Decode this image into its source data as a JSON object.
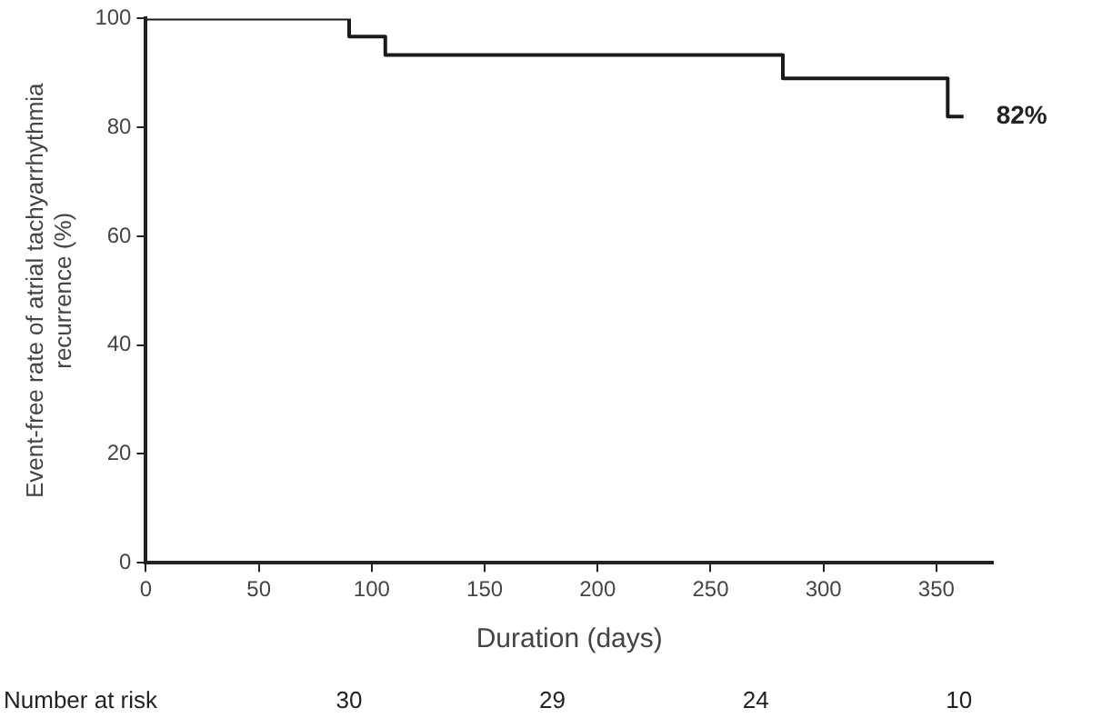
{
  "chart_data": {
    "type": "step",
    "xlabel": "Duration (days)",
    "ylabel": "Event-free rate of atrial tachyarrhythmia recurrence (%)",
    "x": [
      0,
      90,
      106,
      282,
      355,
      362
    ],
    "series": [
      {
        "color": "#1a1a1a",
        "values": [
          100,
          96.7,
          93.3,
          89,
          82,
          82
        ]
      }
    ],
    "xlim": [
      0,
      375
    ],
    "xticks": [
      0,
      50,
      100,
      150,
      200,
      250,
      300,
      350
    ],
    "ylim": [
      0,
      100
    ],
    "yticks": [
      0,
      20,
      40,
      60,
      80,
      100
    ],
    "grid": false,
    "legend": false,
    "marker": "none",
    "line_style": "solid",
    "annotations": [
      {
        "text": "82%",
        "x": 362,
        "y": 82
      },
      "Number at risk",
      "30",
      "29",
      "24",
      "10"
    ]
  }
}
